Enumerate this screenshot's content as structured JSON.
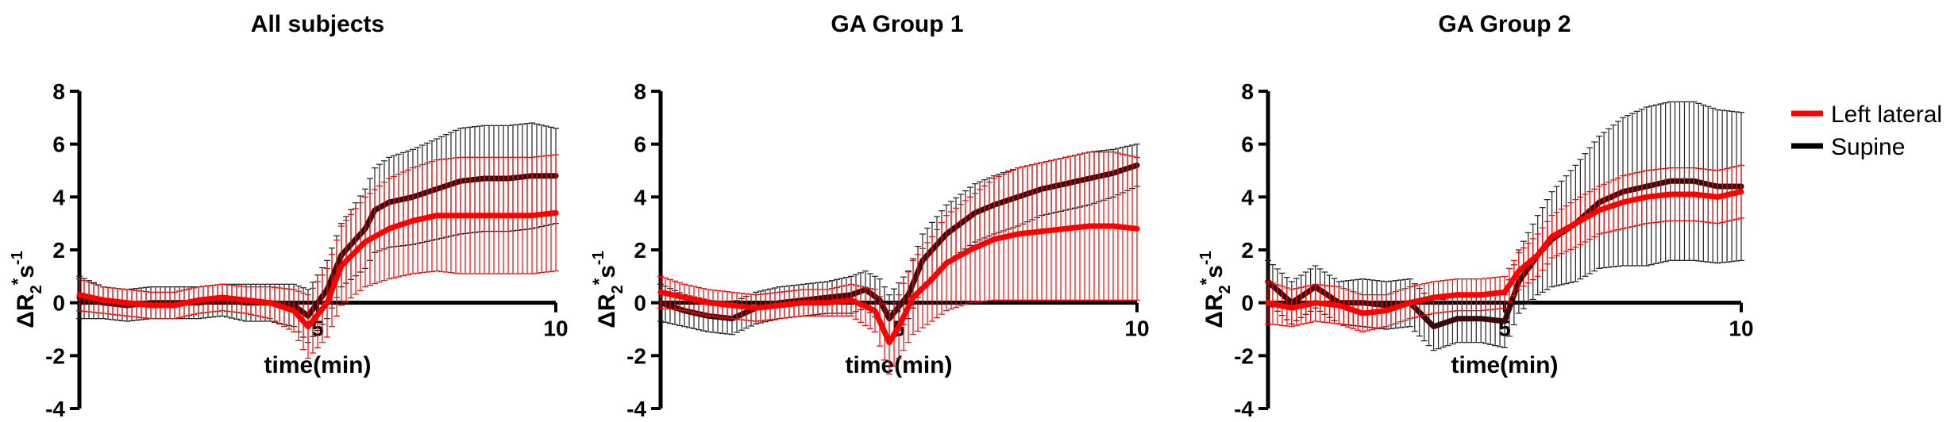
{
  "chart_data": [
    {
      "type": "line",
      "title": "All subjects",
      "xlabel": "time(min)",
      "ylabel_parts": [
        "ΔR",
        "2",
        "*",
        "s",
        "-1"
      ],
      "xlim": [
        0,
        10
      ],
      "ylim": [
        -4,
        8
      ],
      "xticks": [
        5,
        10
      ],
      "xtick_labels": [
        "5",
        "10"
      ],
      "yticks": [
        8,
        6,
        4,
        2,
        0,
        -2,
        -4
      ],
      "ytick_labels": [
        "8",
        "6",
        "4",
        "2",
        "0",
        "-2",
        "-4"
      ],
      "series": [
        {
          "name": "Supine",
          "color": "#3a0a0a",
          "err_color": "#222222",
          "x": [
            0,
            0.5,
            1,
            1.5,
            2,
            2.5,
            3,
            3.5,
            4,
            4.5,
            4.8,
            5.2,
            5.5,
            6,
            6.2,
            6.5,
            7,
            7.5,
            8,
            8.5,
            9,
            9.5,
            10
          ],
          "y": [
            0.2,
            0.0,
            -0.1,
            0.0,
            0.0,
            0.0,
            0.1,
            0.0,
            0.0,
            -0.1,
            -0.5,
            0.5,
            1.8,
            2.8,
            3.5,
            3.8,
            4.0,
            4.3,
            4.6,
            4.7,
            4.7,
            4.8,
            4.8
          ],
          "err": [
            0.8,
            0.6,
            0.6,
            0.6,
            0.6,
            0.6,
            0.6,
            0.7,
            0.7,
            0.8,
            1.0,
            1.1,
            1.2,
            1.5,
            1.6,
            1.7,
            1.8,
            1.9,
            2.0,
            2.0,
            2.0,
            2.0,
            1.8
          ]
        },
        {
          "name": "Left lateral",
          "color": "#ff0000",
          "err_color": "#ff0000",
          "x": [
            0,
            0.5,
            1,
            1.5,
            2,
            2.5,
            3,
            3.5,
            4,
            4.5,
            4.8,
            5.2,
            5.5,
            6,
            6.5,
            7,
            7.5,
            8,
            8.5,
            9,
            9.5,
            10
          ],
          "y": [
            0.3,
            0.1,
            0.0,
            -0.1,
            -0.1,
            0.1,
            0.2,
            0.1,
            0.0,
            -0.3,
            -0.9,
            0.0,
            1.4,
            2.3,
            2.8,
            3.1,
            3.3,
            3.3,
            3.3,
            3.3,
            3.3,
            3.4
          ],
          "err": [
            0.6,
            0.5,
            0.5,
            0.5,
            0.5,
            0.5,
            0.5,
            0.5,
            0.6,
            0.8,
            1.2,
            1.3,
            1.5,
            1.7,
            1.9,
            2.0,
            2.1,
            2.2,
            2.2,
            2.2,
            2.2,
            2.2
          ]
        }
      ]
    },
    {
      "type": "line",
      "title": "GA Group  1",
      "xlabel": "time(min)",
      "ylabel_parts": [
        "ΔR",
        "2",
        "*",
        "s",
        "-1"
      ],
      "xlim": [
        0,
        10
      ],
      "ylim": [
        -4,
        8
      ],
      "xticks": [
        5,
        10
      ],
      "xtick_labels": [
        "5",
        "10"
      ],
      "yticks": [
        8,
        6,
        4,
        2,
        0,
        -2,
        -4
      ],
      "ytick_labels": [
        "8",
        "6",
        "4",
        "2",
        "0",
        "-2",
        "-4"
      ],
      "series": [
        {
          "name": "Supine",
          "color": "#3a0a0a",
          "err_color": "#222222",
          "x": [
            0,
            0.5,
            1,
            1.5,
            2,
            2.5,
            3,
            3.5,
            4,
            4.3,
            4.6,
            4.8,
            5.2,
            5.5,
            6,
            6.3,
            6.6,
            7,
            7.5,
            8,
            8.5,
            9,
            9.5,
            10
          ],
          "y": [
            0.0,
            -0.3,
            -0.5,
            -0.6,
            -0.2,
            0.0,
            0.1,
            0.2,
            0.3,
            0.5,
            0.1,
            -0.6,
            0.3,
            1.6,
            2.6,
            3.0,
            3.4,
            3.7,
            4.0,
            4.3,
            4.5,
            4.7,
            4.9,
            5.2
          ],
          "err": [
            0.7,
            0.6,
            0.6,
            0.6,
            0.6,
            0.6,
            0.6,
            0.6,
            0.7,
            0.7,
            0.8,
            0.9,
            0.9,
            1.0,
            1.1,
            1.1,
            1.1,
            1.1,
            1.1,
            1.0,
            1.0,
            1.0,
            0.9,
            0.8
          ]
        },
        {
          "name": "Left lateral",
          "color": "#ff0000",
          "err_color": "#ff0000",
          "x": [
            0,
            0.5,
            1,
            1.5,
            2,
            2.5,
            3,
            3.5,
            4,
            4.5,
            4.8,
            5.0,
            5.3,
            5.7,
            6,
            6.5,
            7,
            7.5,
            8,
            8.5,
            9,
            9.5,
            10
          ],
          "y": [
            0.4,
            0.2,
            0.0,
            -0.1,
            -0.2,
            -0.1,
            0.0,
            0.0,
            0.1,
            -0.3,
            -1.5,
            -0.9,
            0.2,
            0.9,
            1.5,
            2.0,
            2.4,
            2.6,
            2.7,
            2.8,
            2.9,
            2.9,
            2.8
          ],
          "err": [
            0.6,
            0.5,
            0.5,
            0.5,
            0.5,
            0.5,
            0.5,
            0.5,
            0.6,
            0.8,
            1.2,
            1.2,
            1.4,
            1.6,
            1.8,
            2.0,
            2.3,
            2.5,
            2.6,
            2.7,
            2.8,
            2.8,
            2.7
          ]
        }
      ]
    },
    {
      "type": "line",
      "title": "GA Group 2",
      "xlabel": "time(min)",
      "ylabel_parts": [
        "ΔR",
        "2",
        "*",
        "s",
        "-1"
      ],
      "xlim": [
        0,
        10
      ],
      "ylim": [
        -4,
        8
      ],
      "xticks": [
        5,
        10
      ],
      "xtick_labels": [
        "5",
        "10"
      ],
      "yticks": [
        8,
        6,
        4,
        2,
        0,
        -2,
        -4
      ],
      "ytick_labels": [
        "8",
        "6",
        "4",
        "2",
        "0",
        "-2",
        "-4"
      ],
      "series": [
        {
          "name": "Supine",
          "color": "#3a0a0a",
          "err_color": "#222222",
          "x": [
            0,
            0.5,
            1,
            1.5,
            2,
            2.5,
            3,
            3.5,
            4,
            4.5,
            5.0,
            5.3,
            5.7,
            6,
            6.5,
            7,
            7.5,
            8,
            8.5,
            9,
            9.5,
            10
          ],
          "y": [
            0.8,
            0.0,
            0.6,
            0.0,
            0.0,
            -0.1,
            0.0,
            -0.9,
            -0.6,
            -0.6,
            -0.7,
            0.8,
            1.8,
            2.4,
            3.0,
            3.8,
            4.2,
            4.4,
            4.6,
            4.6,
            4.4,
            4.4
          ],
          "err": [
            0.8,
            0.8,
            0.8,
            0.8,
            0.9,
            0.9,
            0.9,
            0.9,
            0.9,
            0.9,
            1.0,
            1.2,
            1.5,
            1.8,
            2.2,
            2.5,
            2.8,
            3.0,
            3.0,
            3.0,
            2.9,
            2.8
          ]
        },
        {
          "name": "Left lateral",
          "color": "#ff0000",
          "err_color": "#ff0000",
          "x": [
            0,
            0.5,
            1,
            1.5,
            2,
            2.5,
            3,
            3.5,
            4,
            4.5,
            5.0,
            5.3,
            5.7,
            6,
            6.5,
            7,
            7.5,
            8,
            8.5,
            9,
            9.5,
            10
          ],
          "y": [
            0.0,
            -0.2,
            0.0,
            -0.1,
            -0.4,
            -0.3,
            0.0,
            0.2,
            0.3,
            0.3,
            0.4,
            1.2,
            1.8,
            2.5,
            3.0,
            3.5,
            3.8,
            4.0,
            4.1,
            4.1,
            4.0,
            4.2
          ],
          "err": [
            0.8,
            0.7,
            0.7,
            0.7,
            0.7,
            0.6,
            0.6,
            0.6,
            0.6,
            0.6,
            0.6,
            0.7,
            0.8,
            0.8,
            0.9,
            0.9,
            1.0,
            1.0,
            1.0,
            1.0,
            1.0,
            1.0
          ]
        }
      ]
    }
  ],
  "legend": {
    "items": [
      {
        "label": "Left lateral",
        "color": "#ff0000"
      },
      {
        "label": "Supine",
        "color": "#000000"
      }
    ]
  }
}
